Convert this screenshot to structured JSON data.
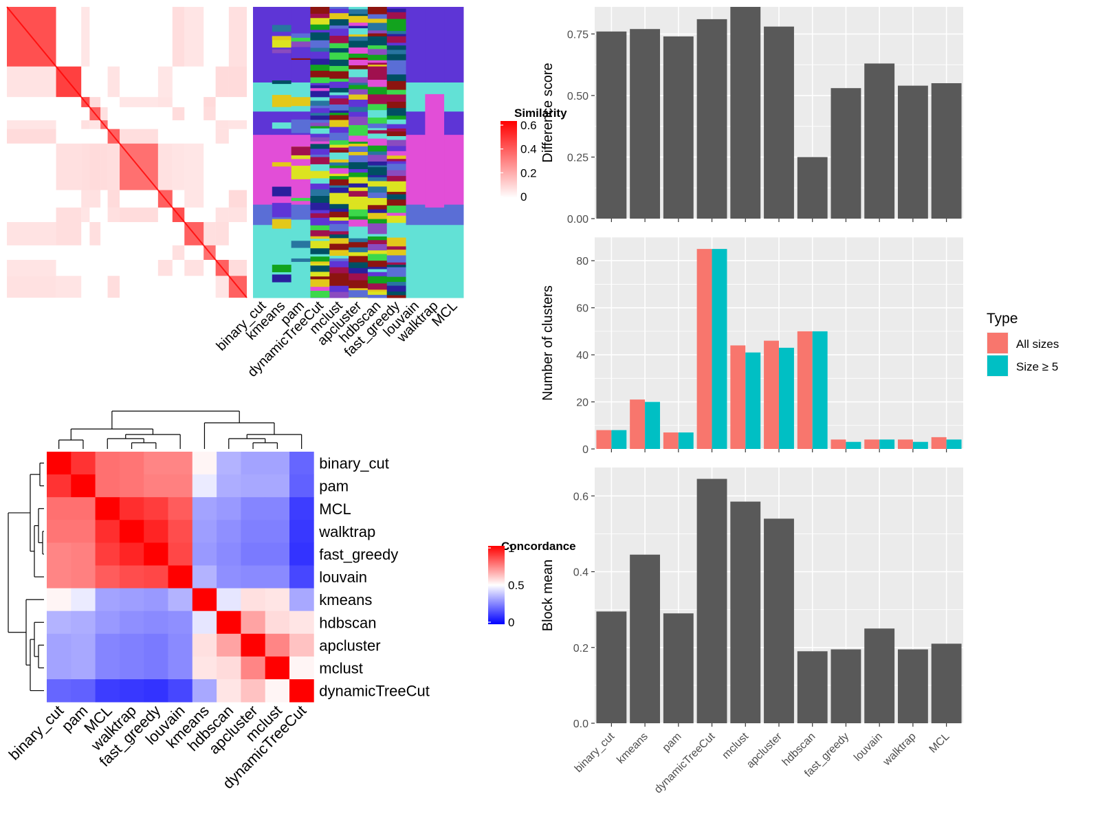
{
  "methods": [
    "binary_cut",
    "kmeans",
    "pam",
    "dynamicTreeCut",
    "mclust",
    "apcluster",
    "hdbscan",
    "fast_greedy",
    "louvain",
    "walktrap",
    "MCL"
  ],
  "similarity_legend": {
    "title": "Similarity",
    "ticks": [
      "0",
      "0.2",
      "0.4",
      "0.6"
    ]
  },
  "concordance_legend": {
    "title": "Concordance",
    "ticks": [
      "0",
      "0.5",
      "1"
    ]
  },
  "colors": {
    "panel_bg": "#EBEBEB",
    "bar_fill": "#595959",
    "all_sizes": "#F8766D",
    "size_ge5": "#00BFC4",
    "heat_high": "#FF0000",
    "heat_mid": "#FFFFFF",
    "heat_low": "#0000FF",
    "cluster_palette": [
      "#5E35D6",
      "#E24ED7",
      "#62E1D6",
      "#3CD84B",
      "#2875A0",
      "#004F63",
      "#8A4BBF",
      "#2A1F9E",
      "#5A6ED6",
      "#DCE320",
      "#12A31E",
      "#A0104E",
      "#E3C81A",
      "#8C1410"
    ]
  },
  "chart_data": [
    {
      "type": "heatmap",
      "name": "similarity-heatmap",
      "title": "",
      "legend": "Similarity",
      "value_range": [
        0,
        0.6
      ],
      "blocks": [
        {
          "size": 0.205,
          "within": 0.55
        },
        {
          "size": 0.105,
          "within": 0.6
        },
        {
          "size": 0.035,
          "within": 0.55
        },
        {
          "size": 0.045,
          "within": 0.5
        },
        {
          "size": 0.03,
          "within": 0.45
        },
        {
          "size": 0.05,
          "within": 0.5
        },
        {
          "size": 0.16,
          "within": 0.45
        },
        {
          "size": 0.06,
          "within": 0.5
        },
        {
          "size": 0.05,
          "within": 0.55
        },
        {
          "size": 0.08,
          "within": 0.5
        },
        {
          "size": 0.05,
          "within": 0.45
        },
        {
          "size": 0.055,
          "within": 0.5
        },
        {
          "size": 0.075,
          "within": 0.5
        }
      ]
    },
    {
      "type": "heatmap",
      "name": "cluster-membership-annotation",
      "columns": [
        "binary_cut",
        "kmeans",
        "pam",
        "dynamicTreeCut",
        "mclust",
        "apcluster",
        "hdbscan",
        "fast_greedy",
        "louvain",
        "walktrap",
        "MCL"
      ]
    },
    {
      "type": "heatmap",
      "name": "concordance-heatmap",
      "title": "",
      "legend": "Concordance",
      "value_range": [
        0,
        1
      ],
      "row_order": [
        "binary_cut",
        "pam",
        "MCL",
        "walktrap",
        "fast_greedy",
        "louvain",
        "kmeans",
        "hdbscan",
        "apcluster",
        "mclust",
        "dynamicTreeCut"
      ],
      "col_order": [
        "binary_cut",
        "pam",
        "MCL",
        "walktrap",
        "fast_greedy",
        "louvain",
        "kmeans",
        "hdbscan",
        "apcluster",
        "mclust",
        "dynamicTreeCut"
      ],
      "matrix": [
        [
          1.0,
          0.9,
          0.78,
          0.77,
          0.74,
          0.74,
          0.52,
          0.35,
          0.32,
          0.32,
          0.2
        ],
        [
          0.9,
          1.0,
          0.78,
          0.77,
          0.75,
          0.75,
          0.46,
          0.34,
          0.33,
          0.33,
          0.19
        ],
        [
          0.78,
          0.78,
          1.0,
          0.91,
          0.88,
          0.82,
          0.32,
          0.3,
          0.26,
          0.26,
          0.12
        ],
        [
          0.77,
          0.77,
          0.91,
          1.0,
          0.93,
          0.85,
          0.31,
          0.28,
          0.25,
          0.25,
          0.11
        ],
        [
          0.74,
          0.75,
          0.88,
          0.93,
          1.0,
          0.86,
          0.3,
          0.27,
          0.24,
          0.24,
          0.1
        ],
        [
          0.74,
          0.75,
          0.82,
          0.85,
          0.86,
          1.0,
          0.35,
          0.28,
          0.27,
          0.27,
          0.14
        ],
        [
          0.52,
          0.46,
          0.32,
          0.31,
          0.3,
          0.35,
          1.0,
          0.45,
          0.56,
          0.55,
          0.33
        ],
        [
          0.35,
          0.34,
          0.3,
          0.28,
          0.27,
          0.28,
          0.45,
          1.0,
          0.68,
          0.57,
          0.55
        ],
        [
          0.32,
          0.33,
          0.26,
          0.25,
          0.24,
          0.27,
          0.56,
          0.68,
          1.0,
          0.74,
          0.62
        ],
        [
          0.32,
          0.33,
          0.26,
          0.25,
          0.24,
          0.27,
          0.55,
          0.57,
          0.74,
          1.0,
          0.52
        ],
        [
          0.2,
          0.19,
          0.12,
          0.11,
          0.1,
          0.14,
          0.33,
          0.55,
          0.62,
          0.52,
          1.0
        ]
      ]
    },
    {
      "type": "bar",
      "name": "difference-score",
      "categories": [
        "binary_cut",
        "kmeans",
        "pam",
        "dynamicTreeCut",
        "mclust",
        "apcluster",
        "hdbscan",
        "fast_greedy",
        "louvain",
        "walktrap",
        "MCL"
      ],
      "values": [
        0.76,
        0.77,
        0.74,
        0.81,
        0.86,
        0.78,
        0.25,
        0.53,
        0.63,
        0.54,
        0.55
      ],
      "xlabel": "",
      "ylabel": "Difference score",
      "ylim": [
        0,
        0.86
      ],
      "yticks": [
        0,
        0.25,
        0.5,
        0.75
      ],
      "ytick_labels": [
        "0.00",
        "0.25",
        "0.50",
        "0.75"
      ]
    },
    {
      "type": "bar",
      "name": "number-of-clusters",
      "categories": [
        "binary_cut",
        "kmeans",
        "pam",
        "dynamicTreeCut",
        "mclust",
        "apcluster",
        "hdbscan",
        "fast_greedy",
        "louvain",
        "walktrap",
        "MCL"
      ],
      "series": [
        {
          "name": "All sizes",
          "values": [
            8,
            21,
            7,
            85,
            44,
            46,
            50,
            4,
            4,
            4,
            5
          ]
        },
        {
          "name": "Size ≥ 5",
          "values": [
            8,
            20,
            7,
            85,
            41,
            43,
            50,
            3,
            4,
            3,
            4
          ]
        }
      ],
      "xlabel": "",
      "ylabel": "Number of clusters",
      "ylim": [
        0,
        90
      ],
      "yticks": [
        0,
        20,
        40,
        60,
        80
      ],
      "ytick_labels": [
        "0",
        "20",
        "40",
        "60",
        "80"
      ],
      "legend": {
        "title": "Type",
        "position": "right",
        "entries": [
          "All sizes",
          "Size ≥ 5"
        ]
      }
    },
    {
      "type": "bar",
      "name": "block-mean",
      "categories": [
        "binary_cut",
        "kmeans",
        "pam",
        "dynamicTreeCut",
        "mclust",
        "apcluster",
        "hdbscan",
        "fast_greedy",
        "louvain",
        "walktrap",
        "MCL"
      ],
      "values": [
        0.295,
        0.445,
        0.29,
        0.645,
        0.585,
        0.54,
        0.19,
        0.195,
        0.25,
        0.195,
        0.21
      ],
      "xlabel": "",
      "ylabel": "Block mean",
      "ylim": [
        0,
        0.675
      ],
      "yticks": [
        0,
        0.2,
        0.4,
        0.6
      ],
      "ytick_labels": [
        "0.0",
        "0.2",
        "0.4",
        "0.6"
      ]
    }
  ]
}
